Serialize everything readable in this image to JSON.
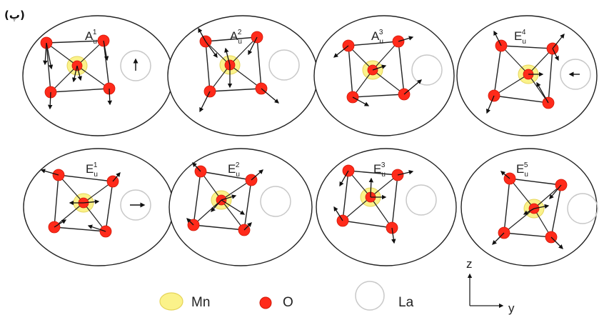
{
  "panel_tag": "(پ)",
  "colors": {
    "oxygen": "#ff2a1a",
    "oxygen_stroke": "#d01808",
    "manganese": "#fbf28a",
    "manganese_stroke": "#e5d45a",
    "lanthanum_stroke": "#c8c8c8",
    "line": "#222222"
  },
  "modes": [
    {
      "id": "A1u",
      "letter": "A",
      "sup": "1",
      "sub": "u",
      "la_arrow": "up-arrow"
    },
    {
      "id": "A2u",
      "letter": "A",
      "sup": "2",
      "sub": "u",
      "la_arrow": "none"
    },
    {
      "id": "A3u",
      "letter": "A",
      "sup": "3",
      "sub": "u",
      "la_arrow": "none"
    },
    {
      "id": "E4u",
      "letter": "E",
      "sup": "4",
      "sub": "u",
      "la_arrow": "left-arrow"
    },
    {
      "id": "E1u",
      "letter": "E",
      "sup": "1",
      "sub": "u",
      "la_arrow": "right-arrow"
    },
    {
      "id": "E2u",
      "letter": "E",
      "sup": "2",
      "sub": "u",
      "la_arrow": "none"
    },
    {
      "id": "E3u",
      "letter": "E",
      "sup": "3",
      "sub": "u",
      "la_arrow": "none"
    },
    {
      "id": "E5u",
      "letter": "E",
      "sup": "5",
      "sub": "u",
      "la_arrow": "none"
    }
  ],
  "legend": {
    "mn": "Mn",
    "o": "O",
    "la": "La"
  },
  "axes": {
    "z": "z",
    "y": "y"
  }
}
